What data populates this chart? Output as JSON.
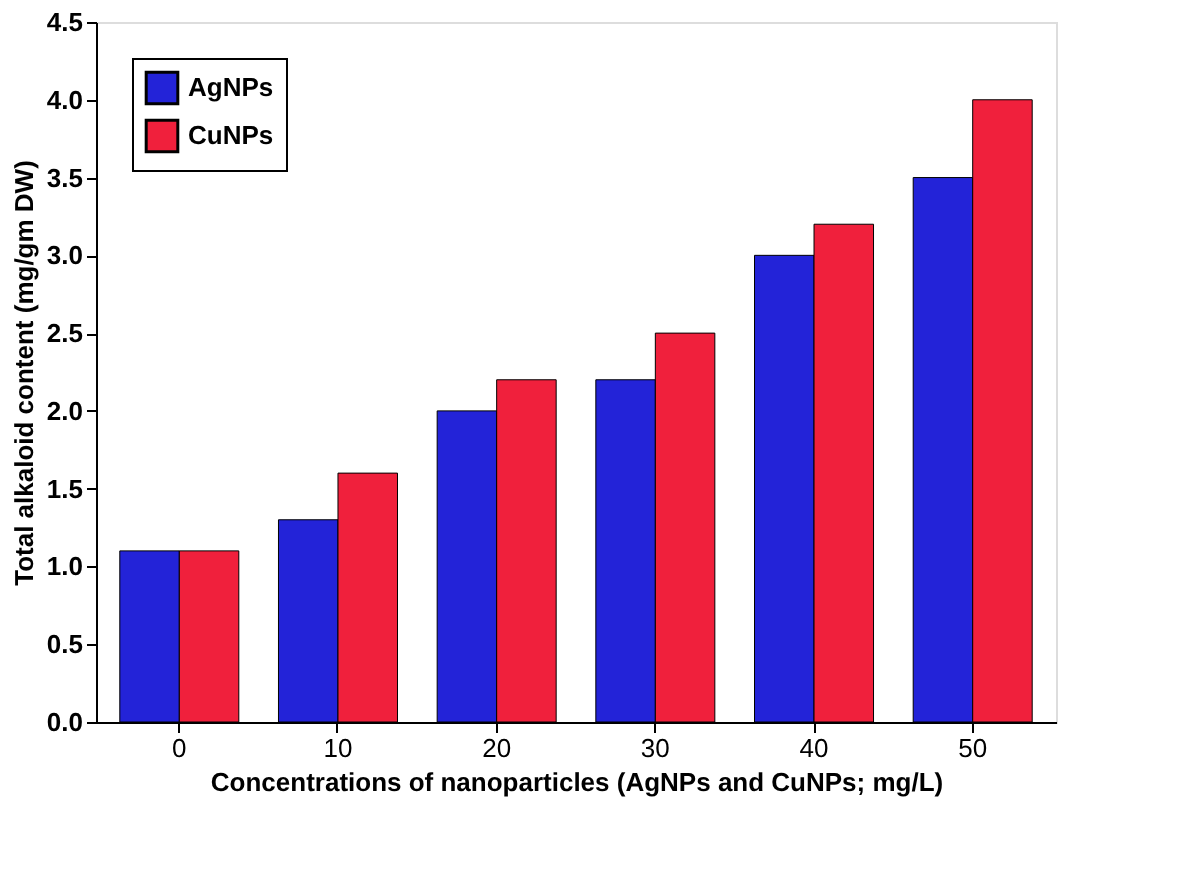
{
  "chart_data": {
    "type": "bar",
    "xlabel": "Concentrations of nanoparticles (AgNPs and CuNPs; mg/L)",
    "ylabel": "Total alkaloid content (mg/gm DW)",
    "categories": [
      "0",
      "10",
      "20",
      "30",
      "40",
      "50"
    ],
    "series": [
      {
        "name": "AgNPs",
        "color": "#2323d8",
        "values": [
          1.1,
          1.3,
          2.0,
          2.2,
          3.0,
          3.5
        ]
      },
      {
        "name": "CuNPs",
        "color": "#f0203c",
        "values": [
          1.1,
          1.6,
          2.2,
          2.5,
          3.2,
          4.0
        ]
      }
    ],
    "ylim": [
      0,
      4.5
    ],
    "yticks": [
      {
        "value": 0,
        "label": "0.0"
      },
      {
        "value": 0.5,
        "label": "0.5"
      },
      {
        "value": 1,
        "label": "1.0"
      },
      {
        "value": 1.5,
        "label": "1.5"
      },
      {
        "value": 2,
        "label": "2.0"
      },
      {
        "value": 2.5,
        "label": "2.5"
      },
      {
        "value": 3,
        "label": "3.0"
      },
      {
        "value": 3.5,
        "label": "3.5"
      },
      {
        "value": 4,
        "label": "4.0"
      },
      {
        "value": 4.5,
        "label": "4.5"
      }
    ],
    "grid": false,
    "legend": "top left"
  }
}
